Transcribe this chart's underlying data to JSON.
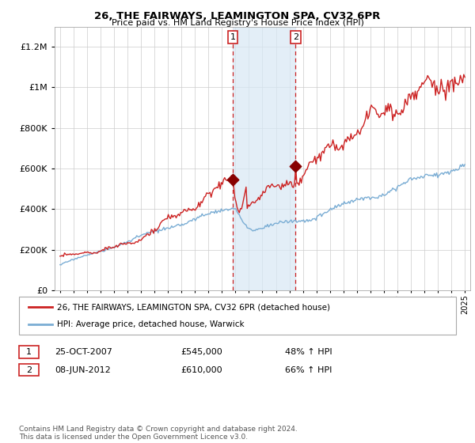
{
  "title": "26, THE FAIRWAYS, LEAMINGTON SPA, CV32 6PR",
  "subtitle": "Price paid vs. HM Land Registry's House Price Index (HPI)",
  "legend_line1": "26, THE FAIRWAYS, LEAMINGTON SPA, CV32 6PR (detached house)",
  "legend_line2": "HPI: Average price, detached house, Warwick",
  "transaction1_date": "25-OCT-2007",
  "transaction1_price": 545000,
  "transaction1_label": "48% ↑ HPI",
  "transaction2_date": "08-JUN-2012",
  "transaction2_price": 610000,
  "transaction2_label": "66% ↑ HPI",
  "footnote": "Contains HM Land Registry data © Crown copyright and database right 2024.\nThis data is licensed under the Open Government Licence v3.0.",
  "hpi_color": "#7aadd4",
  "price_color": "#cc2222",
  "marker_color": "#880000",
  "grid_color": "#cccccc",
  "background_color": "#ffffff",
  "plot_bg_color": "#ffffff",
  "shade_color": "#d8e8f5",
  "dashed_color": "#cc2222",
  "year_start": 1995,
  "year_end": 2025,
  "ylim_max": 1300000,
  "yticks": [
    0,
    200000,
    400000,
    600000,
    800000,
    1000000,
    1200000
  ]
}
